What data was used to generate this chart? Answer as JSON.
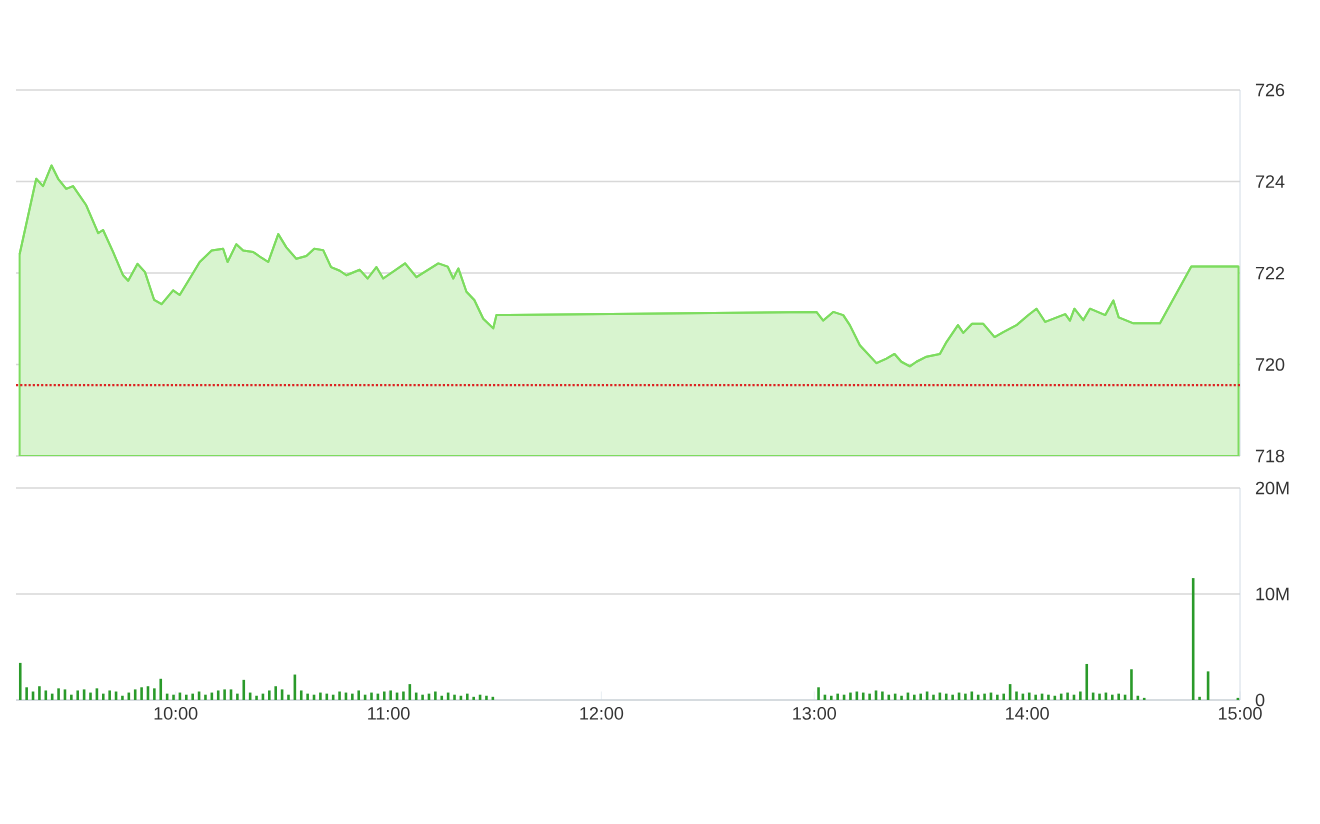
{
  "chart_data": [
    {
      "type": "area",
      "color": "#7ddc5f",
      "grid": "y",
      "tick_labels": "y",
      "xlim": [
        9.25,
        15
      ],
      "ylim": [
        718,
        726
      ],
      "yticks": [
        718,
        720,
        722,
        724,
        726
      ],
      "x": [
        9.267,
        9.345,
        9.377,
        9.417,
        9.448,
        9.486,
        9.518,
        9.58,
        9.636,
        9.659,
        9.706,
        9.753,
        9.777,
        9.821,
        9.856,
        9.899,
        9.934,
        9.988,
        10.019,
        10.082,
        10.113,
        10.169,
        10.223,
        10.244,
        10.285,
        10.317,
        10.364,
        10.401,
        10.435,
        10.482,
        10.52,
        10.567,
        10.614,
        10.651,
        10.693,
        10.73,
        10.771,
        10.802,
        10.865,
        10.902,
        10.943,
        10.975,
        11.078,
        11.131,
        11.234,
        11.278,
        11.304,
        11.328,
        11.366,
        11.403,
        11.445,
        11.492,
        11.507,
        13.01,
        13.042,
        13.089,
        13.136,
        13.167,
        13.214,
        13.292,
        13.339,
        13.377,
        13.409,
        13.449,
        13.48,
        13.527,
        13.59,
        13.621,
        13.675,
        13.7,
        13.741,
        13.794,
        13.847,
        13.888,
        13.95,
        14.006,
        14.044,
        14.085,
        14.179,
        14.201,
        14.222,
        14.264,
        14.295,
        14.367,
        14.405,
        14.43,
        14.499,
        14.624,
        14.771,
        14.993
      ],
      "values": [
        722.41,
        724.06,
        723.9,
        724.35,
        724.06,
        723.84,
        723.9,
        723.48,
        722.87,
        722.94,
        722.46,
        721.95,
        721.83,
        722.2,
        722.02,
        721.41,
        721.32,
        721.62,
        721.52,
        722.0,
        722.24,
        722.49,
        722.53,
        722.24,
        722.63,
        722.49,
        722.46,
        722.34,
        722.24,
        722.85,
        722.56,
        722.31,
        722.37,
        722.53,
        722.5,
        722.13,
        722.05,
        721.95,
        722.07,
        721.88,
        722.13,
        721.88,
        722.21,
        721.91,
        722.21,
        722.14,
        721.88,
        722.1,
        721.59,
        721.41,
        721.0,
        720.79,
        721.08,
        721.15,
        720.96,
        721.15,
        721.08,
        720.86,
        720.42,
        720.03,
        720.13,
        720.23,
        720.06,
        719.96,
        720.06,
        720.17,
        720.23,
        720.49,
        720.86,
        720.69,
        720.89,
        720.89,
        720.6,
        720.71,
        720.86,
        721.08,
        721.22,
        720.93,
        721.1,
        720.96,
        721.22,
        720.97,
        721.22,
        721.08,
        721.4,
        721.03,
        720.9,
        720.9,
        722.14,
        722.14
      ],
      "ref_lines": [
        {
          "axis": "y",
          "value": 719.55,
          "color": "#dd2222",
          "line_style": "dotted"
        }
      ]
    },
    {
      "type": "bar",
      "color": "#2a9a2a",
      "grid": "y",
      "xlim": [
        9.25,
        15
      ],
      "ylim": [
        0,
        20
      ],
      "xticks": [
        {
          "value": 10,
          "label": "10:00"
        },
        {
          "value": 11,
          "label": "11:00"
        },
        {
          "value": 12,
          "label": "12:00"
        },
        {
          "value": 13,
          "label": "13:00"
        },
        {
          "value": 14,
          "label": "14:00"
        },
        {
          "value": 15,
          "label": "15:00"
        }
      ],
      "yticks": [
        0,
        {
          "value": 10,
          "label": "10M"
        },
        {
          "value": 20,
          "label": "20M"
        }
      ],
      "x": [
        9.27,
        9.3,
        9.33,
        9.36,
        9.39,
        9.42,
        9.45,
        9.48,
        9.51,
        9.54,
        9.57,
        9.6,
        9.63,
        9.66,
        9.69,
        9.72,
        9.75,
        9.78,
        9.81,
        9.84,
        9.87,
        9.9,
        9.93,
        9.96,
        9.99,
        10.02,
        10.05,
        10.08,
        10.11,
        10.14,
        10.17,
        10.2,
        10.23,
        10.26,
        10.29,
        10.32,
        10.35,
        10.38,
        10.41,
        10.44,
        10.47,
        10.5,
        10.53,
        10.56,
        10.59,
        10.62,
        10.65,
        10.68,
        10.71,
        10.74,
        10.77,
        10.8,
        10.83,
        10.86,
        10.89,
        10.92,
        10.95,
        10.98,
        11.01,
        11.04,
        11.07,
        11.1,
        11.13,
        11.16,
        11.19,
        11.22,
        11.25,
        11.28,
        11.31,
        11.34,
        11.37,
        11.4,
        11.43,
        11.46,
        11.49,
        13.02,
        13.05,
        13.08,
        13.11,
        13.14,
        13.17,
        13.2,
        13.23,
        13.26,
        13.29,
        13.32,
        13.35,
        13.38,
        13.41,
        13.44,
        13.47,
        13.5,
        13.53,
        13.56,
        13.59,
        13.62,
        13.65,
        13.68,
        13.71,
        13.74,
        13.77,
        13.8,
        13.83,
        13.86,
        13.89,
        13.92,
        13.95,
        13.98,
        14.01,
        14.04,
        14.07,
        14.1,
        14.13,
        14.16,
        14.19,
        14.22,
        14.25,
        14.28,
        14.31,
        14.34,
        14.37,
        14.4,
        14.43,
        14.46,
        14.49,
        14.52,
        14.55,
        14.78,
        14.81,
        14.85,
        14.99
      ],
      "values": [
        3.5,
        1.2,
        0.8,
        1.3,
        0.9,
        0.6,
        1.1,
        1.0,
        0.5,
        0.9,
        1.0,
        0.7,
        1.1,
        0.6,
        0.9,
        0.8,
        0.4,
        0.7,
        1.0,
        1.2,
        1.3,
        1.1,
        2.0,
        0.6,
        0.5,
        0.7,
        0.5,
        0.6,
        0.8,
        0.5,
        0.7,
        0.9,
        1.0,
        1.0,
        0.6,
        1.9,
        0.7,
        0.4,
        0.6,
        0.9,
        1.3,
        1.0,
        0.5,
        2.4,
        0.9,
        0.6,
        0.5,
        0.7,
        0.6,
        0.5,
        0.8,
        0.7,
        0.6,
        0.9,
        0.5,
        0.7,
        0.6,
        0.8,
        0.9,
        0.7,
        0.8,
        1.5,
        0.7,
        0.5,
        0.6,
        0.8,
        0.4,
        0.7,
        0.5,
        0.4,
        0.6,
        0.3,
        0.5,
        0.4,
        0.3,
        1.2,
        0.5,
        0.4,
        0.6,
        0.5,
        0.7,
        0.8,
        0.7,
        0.6,
        0.9,
        0.8,
        0.5,
        0.6,
        0.4,
        0.7,
        0.5,
        0.6,
        0.8,
        0.5,
        0.7,
        0.6,
        0.5,
        0.7,
        0.6,
        0.8,
        0.5,
        0.6,
        0.7,
        0.5,
        0.6,
        1.5,
        0.8,
        0.6,
        0.7,
        0.5,
        0.6,
        0.5,
        0.4,
        0.6,
        0.7,
        0.5,
        0.8,
        3.4,
        0.7,
        0.6,
        0.7,
        0.5,
        0.6,
        0.5,
        2.9,
        0.4,
        0.2,
        11.5,
        0.3,
        2.7,
        0.2
      ]
    }
  ]
}
